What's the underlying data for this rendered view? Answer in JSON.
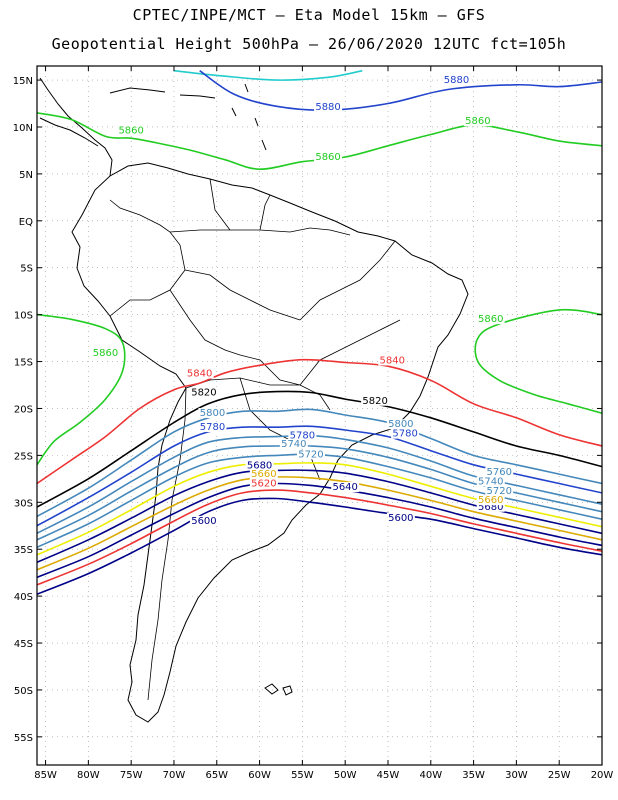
{
  "title_line1": "CPTEC/INPE/MCT  –  Eta Model 15km – GFS",
  "title_line2": "Geopotential Height 500hPa – 26/06/2020 12UTC fct=105h",
  "lat_ticks": [
    "15N",
    "10N",
    "5N",
    "EQ",
    "5S",
    "10S",
    "15S",
    "20S",
    "25S",
    "30S",
    "35S",
    "40S",
    "45S",
    "50S",
    "55S"
  ],
  "lon_ticks": [
    "85W",
    "80W",
    "75W",
    "70W",
    "65W",
    "60W",
    "55W",
    "50W",
    "45W",
    "40W",
    "35W",
    "30W",
    "25W",
    "20W"
  ],
  "contour_labels": [
    {
      "text": "5880",
      "color": "#2244cc",
      "lon": -37,
      "lat": 14.7
    },
    {
      "text": "5880",
      "color": "#2244cc",
      "lon": -52,
      "lat": 11.8
    },
    {
      "text": "5860",
      "color": "#22cc22",
      "lon": -34.5,
      "lat": 10.3
    },
    {
      "text": "5860",
      "color": "#22cc22",
      "lon": -75,
      "lat": 9.3
    },
    {
      "text": "5860",
      "color": "#22cc22",
      "lon": -52,
      "lat": 6.5
    },
    {
      "text": "5860",
      "color": "#22cc22",
      "lon": -33,
      "lat": -10.8
    },
    {
      "text": "5860",
      "color": "#22cc22",
      "lon": -78,
      "lat": -14.4
    },
    {
      "text": "5840",
      "color": "#ee3333",
      "lon": -67,
      "lat": -16.6
    },
    {
      "text": "5840",
      "color": "#ee3333",
      "lon": -44.5,
      "lat": -15.2
    },
    {
      "text": "5820",
      "color": "#000000",
      "lon": -66.5,
      "lat": -18.6
    },
    {
      "text": "5820",
      "color": "#000000",
      "lon": -46.5,
      "lat": -19.5
    },
    {
      "text": "5800",
      "color": "#4488bb",
      "lon": -65.5,
      "lat": -20.8
    },
    {
      "text": "5800",
      "color": "#4488bb",
      "lon": -43.5,
      "lat": -22
    },
    {
      "text": "5780",
      "color": "#2244cc",
      "lon": -65.5,
      "lat": -22.3
    },
    {
      "text": "5780",
      "color": "#2244cc",
      "lon": -43,
      "lat": -23
    },
    {
      "text": "5780",
      "color": "#2244cc",
      "lon": -55,
      "lat": -23.2
    },
    {
      "text": "5740",
      "color": "#4488bb",
      "lon": -56,
      "lat": -24.1
    },
    {
      "text": "5720",
      "color": "#4488bb",
      "lon": -54,
      "lat": -25.2
    },
    {
      "text": "5760",
      "color": "#4488bb",
      "lon": -32,
      "lat": -27.1
    },
    {
      "text": "5740",
      "color": "#4488bb",
      "lon": -33,
      "lat": -28.1
    },
    {
      "text": "5720",
      "color": "#4488bb",
      "lon": -32,
      "lat": -29.1
    },
    {
      "text": "5680",
      "color": "#000088",
      "lon": -60,
      "lat": -26.4
    },
    {
      "text": "5660",
      "color": "#ddaa00",
      "lon": -59.5,
      "lat": -27.3
    },
    {
      "text": "5620",
      "color": "#ee3333",
      "lon": -59.5,
      "lat": -28.3
    },
    {
      "text": "5640",
      "color": "#000088",
      "lon": -50,
      "lat": -28.7
    },
    {
      "text": "5600",
      "color": "#000088",
      "lon": -66.5,
      "lat": -32.3
    },
    {
      "text": "5600",
      "color": "#000088",
      "lon": -43.5,
      "lat": -32
    },
    {
      "text": "5680",
      "color": "#000088",
      "lon": -33,
      "lat": -30.8
    },
    {
      "text": "5660",
      "color": "#ddaa00",
      "lon": -33,
      "lat": -30.1
    }
  ],
  "contours": [
    {
      "color": "#22cccc",
      "pts": [
        [
          -70,
          16
        ],
        [
          -65,
          15.5
        ],
        [
          -58,
          15
        ],
        [
          -52,
          15.3
        ],
        [
          -48,
          16
        ]
      ]
    },
    {
      "color": "#2244cc",
      "pts": [
        [
          -67,
          16
        ],
        [
          -63,
          13.5
        ],
        [
          -58,
          12.2
        ],
        [
          -52,
          11.8
        ],
        [
          -45,
          12.5
        ],
        [
          -38,
          14
        ],
        [
          -30,
          14.5
        ],
        [
          -25,
          14.3
        ],
        [
          -20,
          14.8
        ]
      ]
    },
    {
      "color": "#22cc22",
      "pts": [
        [
          -86,
          11.5
        ],
        [
          -82,
          10.8
        ],
        [
          -78,
          9
        ],
        [
          -75,
          8.8
        ],
        [
          -72,
          8.3
        ],
        [
          -68,
          7.5
        ],
        [
          -64,
          6.5
        ],
        [
          -60,
          5.5
        ],
        [
          -55,
          6.3
        ],
        [
          -50,
          6.8
        ],
        [
          -45,
          8
        ],
        [
          -40,
          9.2
        ],
        [
          -35,
          10.2
        ],
        [
          -30,
          9.5
        ],
        [
          -25,
          8.5
        ],
        [
          -20,
          8
        ]
      ]
    },
    {
      "color": "#22cc22",
      "pts": [
        [
          -20,
          -10
        ],
        [
          -25,
          -9.5
        ],
        [
          -32,
          -11
        ],
        [
          -34.5,
          -12.5
        ],
        [
          -34.5,
          -15
        ],
        [
          -32,
          -17
        ],
        [
          -28,
          -18.5
        ],
        [
          -24,
          -19.5
        ],
        [
          -20,
          -20.5
        ]
      ]
    },
    {
      "color": "#22cc22",
      "pts": [
        [
          -86,
          -10
        ],
        [
          -82,
          -10.5
        ],
        [
          -78,
          -11.5
        ],
        [
          -76,
          -13
        ],
        [
          -76,
          -16
        ],
        [
          -78,
          -19
        ],
        [
          -81,
          -21.5
        ],
        [
          -84,
          -23.5
        ],
        [
          -86,
          -26
        ]
      ]
    },
    {
      "color": "#ee3333",
      "pts": [
        [
          -86,
          -28
        ],
        [
          -82,
          -25.5
        ],
        [
          -78,
          -23
        ],
        [
          -74,
          -20
        ],
        [
          -70,
          -18
        ],
        [
          -67,
          -17.3
        ],
        [
          -64,
          -16.2
        ],
        [
          -60,
          -15.4
        ],
        [
          -55,
          -14.8
        ],
        [
          -50,
          -15.1
        ],
        [
          -45,
          -15.5
        ],
        [
          -40,
          -17
        ],
        [
          -35,
          -19.5
        ],
        [
          -30,
          -21
        ],
        [
          -25,
          -22.8
        ],
        [
          -20,
          -24
        ]
      ]
    },
    {
      "color": "#000000",
      "pts": [
        [
          -86,
          -30.5
        ],
        [
          -80,
          -27.5
        ],
        [
          -75,
          -24.5
        ],
        [
          -70,
          -21.5
        ],
        [
          -66,
          -19.5
        ],
        [
          -62,
          -18.5
        ],
        [
          -58,
          -18.2
        ],
        [
          -54,
          -18.3
        ],
        [
          -50,
          -19
        ],
        [
          -45,
          -19.8
        ],
        [
          -40,
          -21
        ],
        [
          -35,
          -22.5
        ],
        [
          -30,
          -24
        ],
        [
          -25,
          -25
        ],
        [
          -20,
          -26.2
        ]
      ]
    },
    {
      "color": "#4488bb",
      "pts": [
        [
          -86,
          -31.5
        ],
        [
          -80,
          -28.5
        ],
        [
          -75,
          -25.5
        ],
        [
          -70,
          -22.5
        ],
        [
          -66,
          -21
        ],
        [
          -62,
          -20.3
        ],
        [
          -58,
          -20.3
        ],
        [
          -54,
          -20.1
        ],
        [
          -50,
          -20.7
        ],
        [
          -45,
          -21.5
        ],
        [
          -40,
          -23.2
        ],
        [
          -35,
          -25
        ],
        [
          -30,
          -26
        ],
        [
          -25,
          -27
        ],
        [
          -20,
          -28
        ]
      ]
    },
    {
      "color": "#2244cc",
      "pts": [
        [
          -86,
          -32.5
        ],
        [
          -80,
          -29.5
        ],
        [
          -75,
          -26.8
        ],
        [
          -70,
          -24
        ],
        [
          -66,
          -22.5
        ],
        [
          -62,
          -22
        ],
        [
          -58,
          -22
        ],
        [
          -54,
          -21.9
        ],
        [
          -50,
          -22.3
        ],
        [
          -45,
          -23
        ],
        [
          -40,
          -24.5
        ],
        [
          -35,
          -26
        ],
        [
          -30,
          -27
        ],
        [
          -25,
          -28
        ],
        [
          -20,
          -29
        ]
      ]
    },
    {
      "color": "#4488bb",
      "pts": [
        [
          -86,
          -33.3
        ],
        [
          -80,
          -30.5
        ],
        [
          -75,
          -27.8
        ],
        [
          -70,
          -25.2
        ],
        [
          -66,
          -23.6
        ],
        [
          -62,
          -23.1
        ],
        [
          -58,
          -23
        ],
        [
          -54,
          -22.9
        ],
        [
          -50,
          -23.3
        ],
        [
          -45,
          -24.2
        ],
        [
          -40,
          -25.6
        ],
        [
          -35,
          -27.2
        ],
        [
          -30,
          -28.2
        ],
        [
          -25,
          -29.2
        ],
        [
          -20,
          -30.2
        ]
      ]
    },
    {
      "color": "#4488bb",
      "pts": [
        [
          -86,
          -34
        ],
        [
          -80,
          -31.4
        ],
        [
          -75,
          -28.8
        ],
        [
          -70,
          -26.3
        ],
        [
          -66,
          -24.7
        ],
        [
          -62,
          -24.1
        ],
        [
          -58,
          -24
        ],
        [
          -54,
          -24
        ],
        [
          -50,
          -24.3
        ],
        [
          -45,
          -25.2
        ],
        [
          -40,
          -26.5
        ],
        [
          -35,
          -28
        ],
        [
          -30,
          -29
        ],
        [
          -25,
          -30
        ],
        [
          -20,
          -31
        ]
      ]
    },
    {
      "color": "#4488bb",
      "pts": [
        [
          -86,
          -34.8
        ],
        [
          -80,
          -32.3
        ],
        [
          -75,
          -29.8
        ],
        [
          -70,
          -27.3
        ],
        [
          -66,
          -25.8
        ],
        [
          -62,
          -25.2
        ],
        [
          -58,
          -25
        ],
        [
          -54,
          -24.9
        ],
        [
          -50,
          -25.2
        ],
        [
          -45,
          -26.2
        ],
        [
          -40,
          -27.4
        ],
        [
          -35,
          -28.8
        ],
        [
          -30,
          -29.8
        ],
        [
          -25,
          -30.8
        ],
        [
          -20,
          -31.8
        ]
      ]
    },
    {
      "color": "#eeee00",
      "pts": [
        [
          -86,
          -35.6
        ],
        [
          -80,
          -33.2
        ],
        [
          -75,
          -30.8
        ],
        [
          -70,
          -28.3
        ],
        [
          -66,
          -26.8
        ],
        [
          -62,
          -26
        ],
        [
          -58,
          -25.9
        ],
        [
          -54,
          -25.8
        ],
        [
          -50,
          -26
        ],
        [
          -45,
          -27
        ],
        [
          -40,
          -28.3
        ],
        [
          -35,
          -29.6
        ],
        [
          -30,
          -30.6
        ],
        [
          -25,
          -31.6
        ],
        [
          -20,
          -32.6
        ]
      ]
    },
    {
      "color": "#000088",
      "pts": [
        [
          -86,
          -36.4
        ],
        [
          -80,
          -34
        ],
        [
          -75,
          -31.7
        ],
        [
          -70,
          -29.3
        ],
        [
          -66,
          -27.8
        ],
        [
          -62,
          -26.8
        ],
        [
          -58,
          -26.6
        ],
        [
          -54,
          -26.6
        ],
        [
          -50,
          -26.9
        ],
        [
          -45,
          -27.8
        ],
        [
          -40,
          -29
        ],
        [
          -35,
          -30.3
        ],
        [
          -30,
          -31.3
        ],
        [
          -25,
          -32.3
        ],
        [
          -20,
          -33.3
        ]
      ]
    },
    {
      "color": "#ddaa00",
      "pts": [
        [
          -86,
          -37.2
        ],
        [
          -80,
          -34.9
        ],
        [
          -75,
          -32.6
        ],
        [
          -70,
          -30.3
        ],
        [
          -66,
          -28.7
        ],
        [
          -62,
          -27.6
        ],
        [
          -58,
          -27.3
        ],
        [
          -54,
          -27.4
        ],
        [
          -50,
          -27.8
        ],
        [
          -45,
          -28.7
        ],
        [
          -40,
          -29.8
        ],
        [
          -35,
          -31
        ],
        [
          -30,
          -32
        ],
        [
          -25,
          -33
        ],
        [
          -20,
          -34
        ]
      ]
    },
    {
      "color": "#000088",
      "pts": [
        [
          -86,
          -38
        ],
        [
          -80,
          -35.8
        ],
        [
          -75,
          -33.5
        ],
        [
          -70,
          -31.2
        ],
        [
          -66,
          -29.5
        ],
        [
          -62,
          -28.3
        ],
        [
          -58,
          -28
        ],
        [
          -54,
          -28.2
        ],
        [
          -50,
          -28.7
        ],
        [
          -45,
          -29.5
        ],
        [
          -40,
          -30.5
        ],
        [
          -35,
          -31.7
        ],
        [
          -30,
          -32.7
        ],
        [
          -25,
          -33.7
        ],
        [
          -20,
          -34.6
        ]
      ]
    },
    {
      "color": "#ee3333",
      "pts": [
        [
          -86,
          -38.8
        ],
        [
          -80,
          -36.6
        ],
        [
          -75,
          -34.4
        ],
        [
          -70,
          -32
        ],
        [
          -66,
          -30.2
        ],
        [
          -62,
          -29
        ],
        [
          -58,
          -28.7
        ],
        [
          -54,
          -29
        ],
        [
          -50,
          -29.5
        ],
        [
          -45,
          -30.3
        ],
        [
          -40,
          -31.2
        ],
        [
          -35,
          -32.3
        ],
        [
          -30,
          -33.3
        ],
        [
          -25,
          -34.3
        ],
        [
          -20,
          -35.2
        ]
      ]
    },
    {
      "color": "#000088",
      "pts": [
        [
          -86,
          -39.8
        ],
        [
          -80,
          -37.6
        ],
        [
          -75,
          -35.4
        ],
        [
          -70,
          -33
        ],
        [
          -66,
          -31
        ],
        [
          -62,
          -29.8
        ],
        [
          -58,
          -29.6
        ],
        [
          -54,
          -30
        ],
        [
          -50,
          -30.5
        ],
        [
          -45,
          -31.2
        ],
        [
          -40,
          -31.8
        ],
        [
          -35,
          -32.8
        ],
        [
          -30,
          -33.8
        ],
        [
          -25,
          -34.8
        ],
        [
          -20,
          -35.6
        ]
      ]
    }
  ]
}
